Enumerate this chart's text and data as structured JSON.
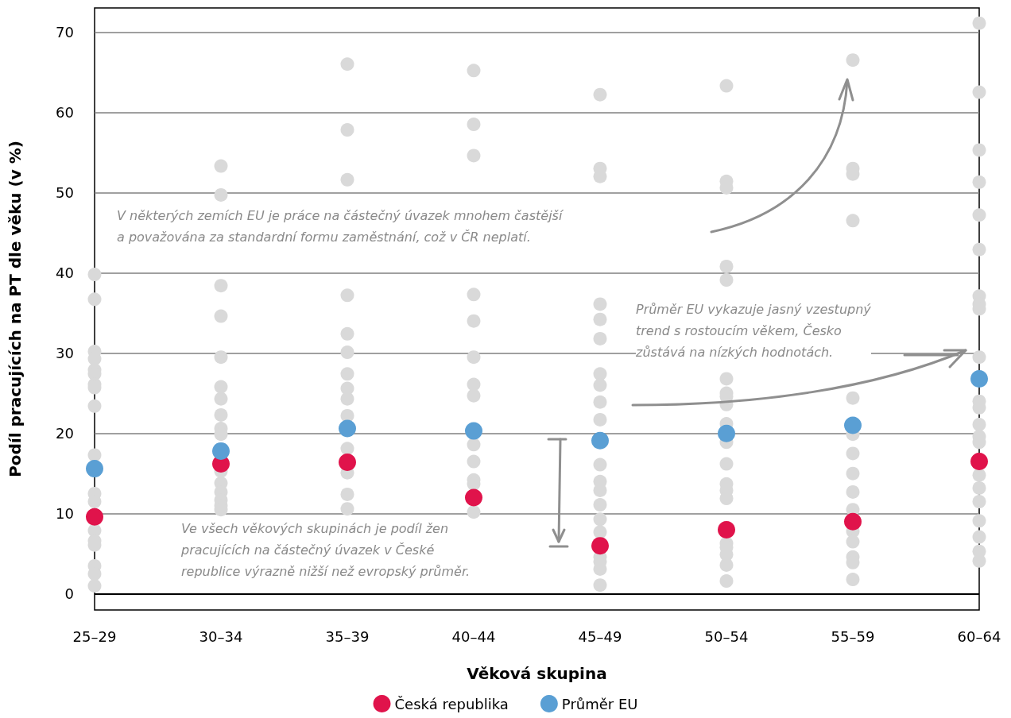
{
  "chart_data": {
    "type": "scatter",
    "xlabel": "Věková skupina",
    "ylabel": "Podíl pracujících na PT dle věku (v %)",
    "categories": [
      "25–29",
      "30–34",
      "35–39",
      "40–44",
      "45–49",
      "50–54",
      "55–59",
      "60–64"
    ],
    "series": [
      {
        "color": "#d9d9d9",
        "x": [
          "25–29",
          "25–29",
          "25–29",
          "25–29",
          "25–29",
          "25–29",
          "25–29",
          "25–29",
          "25–29",
          "25–29",
          "25–29",
          "25–29",
          "25–29",
          "25–29",
          "25–29",
          "25–29",
          "25–29",
          "25–29",
          "30–34",
          "30–34",
          "30–34",
          "30–34",
          "30–34",
          "30–34",
          "30–34",
          "30–34",
          "30–34",
          "30–34",
          "30–34",
          "30–34",
          "30–34",
          "30–34",
          "30–34",
          "30–34",
          "35–39",
          "35–39",
          "35–39",
          "35–39",
          "35–39",
          "35–39",
          "35–39",
          "35–39",
          "35–39",
          "35–39",
          "35–39",
          "35–39",
          "35–39",
          "35–39",
          "40–44",
          "40–44",
          "40–44",
          "40–44",
          "40–44",
          "40–44",
          "40–44",
          "40–44",
          "40–44",
          "40–44",
          "40–44",
          "40–44",
          "40–44",
          "45–49",
          "45–49",
          "45–49",
          "45–49",
          "45–49",
          "45–49",
          "45–49",
          "45–49",
          "45–49",
          "45–49",
          "45–49",
          "45–49",
          "45–49",
          "45–49",
          "45–49",
          "45–49",
          "45–49",
          "45–49",
          "45–49",
          "45–49",
          "50–54",
          "50–54",
          "50–54",
          "50–54",
          "50–54",
          "50–54",
          "50–54",
          "50–54",
          "50–54",
          "50–54",
          "50–54",
          "50–54",
          "50–54",
          "50–54",
          "50–54",
          "50–54",
          "50–54",
          "50–54",
          "50–54",
          "50–54",
          "55–59",
          "55–59",
          "55–59",
          "55–59",
          "55–59",
          "55–59",
          "55–59",
          "55–59",
          "55–59",
          "55–59",
          "55–59",
          "55–59",
          "55–59",
          "55–59",
          "55–59",
          "60–64",
          "60–64",
          "60–64",
          "60–64",
          "60–64",
          "60–64",
          "60–64",
          "60–64",
          "60–64",
          "60–64",
          "60–64",
          "60–64",
          "60–64",
          "60–64",
          "60–64",
          "60–64",
          "60–64",
          "60–64",
          "60–64",
          "60–64",
          "60–64",
          "60–64"
        ],
        "values": [
          39.8,
          36.7,
          30.2,
          29.3,
          27.9,
          27.4,
          26.1,
          25.7,
          23.4,
          17.3,
          12.5,
          11.5,
          7.9,
          6.6,
          6.1,
          3.5,
          2.5,
          1.0,
          53.3,
          49.7,
          38.4,
          34.6,
          29.5,
          25.8,
          24.3,
          22.3,
          20.6,
          19.9,
          15.3,
          13.8,
          12.7,
          11.7,
          11.0,
          10.5,
          66.0,
          57.8,
          51.6,
          37.2,
          32.4,
          30.1,
          27.4,
          25.6,
          24.3,
          22.2,
          18.1,
          15.1,
          12.4,
          10.6,
          65.2,
          58.5,
          54.6,
          37.3,
          34.0,
          29.5,
          26.1,
          24.7,
          18.6,
          16.5,
          14.2,
          13.7,
          10.2,
          62.2,
          53.0,
          52.0,
          36.1,
          34.2,
          31.8,
          27.4,
          26.0,
          23.9,
          21.7,
          16.1,
          14.0,
          12.9,
          11.1,
          9.3,
          7.7,
          4.6,
          4.0,
          3.1,
          1.1,
          63.3,
          51.4,
          50.6,
          40.8,
          39.1,
          26.8,
          25.0,
          24.6,
          23.6,
          21.2,
          18.9,
          16.2,
          13.7,
          12.9,
          11.9,
          6.3,
          5.8,
          4.9,
          3.6,
          1.6,
          66.5,
          53.0,
          52.3,
          46.5,
          24.4,
          19.9,
          17.5,
          15.0,
          12.7,
          10.5,
          7.8,
          6.5,
          4.6,
          3.9,
          1.8,
          71.1,
          62.5,
          55.3,
          51.3,
          47.2,
          42.9,
          37.1,
          36.1,
          35.5,
          29.5,
          24.0,
          23.2,
          21.1,
          19.6,
          18.9,
          14.8,
          13.2,
          11.5,
          9.1,
          7.1,
          5.3,
          4.1
        ]
      },
      {
        "name": "Česká republika",
        "color": "#e0134b",
        "values": [
          9.6,
          16.2,
          16.4,
          12.0,
          6.0,
          8.0,
          9.0,
          16.5
        ]
      },
      {
        "name": "Průměr EU",
        "color": "#5a9fd4",
        "values": [
          15.6,
          17.8,
          20.6,
          20.3,
          19.1,
          20.0,
          21.0,
          26.8
        ]
      }
    ],
    "ylim": [
      -2,
      73
    ],
    "yticks": [
      0,
      10,
      20,
      30,
      40,
      50,
      60,
      70
    ],
    "ref_lines": [
      {
        "axis": "y",
        "value": 0,
        "color": "#000000"
      }
    ],
    "annotations": [
      "V některých zemích EU je práce na částečný úvazek mnohem častější\na považována za standardní formu zaměstnání, což v ČR neplatí.",
      "Průměr EU vykazuje jasný vzestupný\ntrend s rostoucím věkem, Česko\nzůstává na nízkých hodnotách.",
      "Ve všech věkových skupinách je podíl žen\npracujících na částečný úvazek v České\nrepublice výrazně nižší než evropský průměr."
    ],
    "grid": "y",
    "legend": "bottom",
    "marker": "circle"
  }
}
